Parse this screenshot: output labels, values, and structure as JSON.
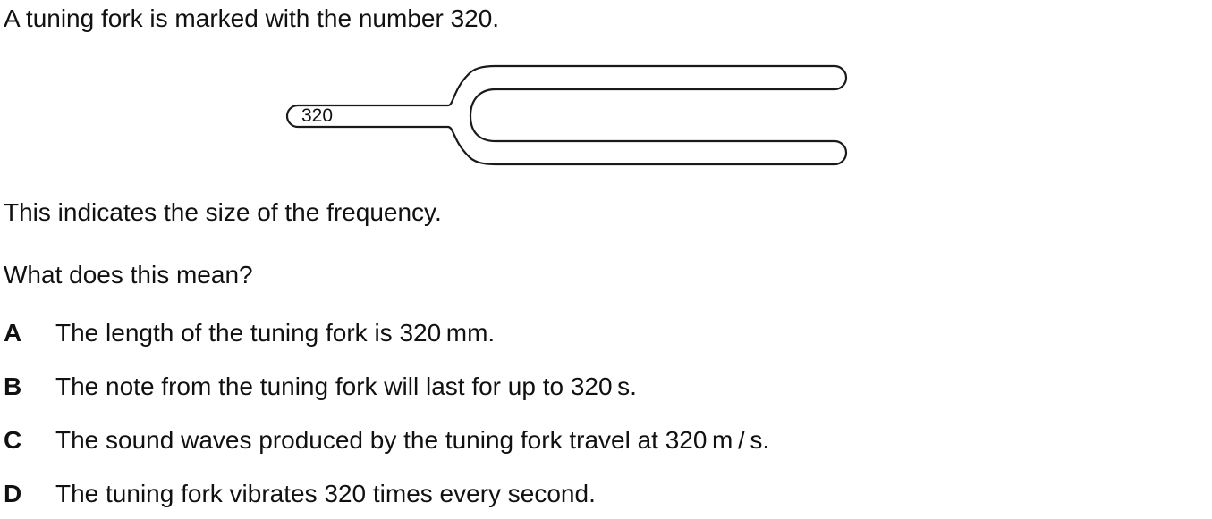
{
  "question": {
    "intro": "A tuning fork is marked with the number 320.",
    "fork_marking": "320",
    "statement": "This indicates the size of the frequency.",
    "prompt": "What does this mean?"
  },
  "options": [
    {
      "letter": "A",
      "text": "The length of the tuning fork is 320 mm."
    },
    {
      "letter": "B",
      "text": "The note from the tuning fork will last for up to 320 s."
    },
    {
      "letter": "C",
      "text": "The sound waves produced by the tuning fork travel at 320 m / s."
    },
    {
      "letter": "D",
      "text": "The tuning fork vibrates 320 times every second."
    }
  ]
}
